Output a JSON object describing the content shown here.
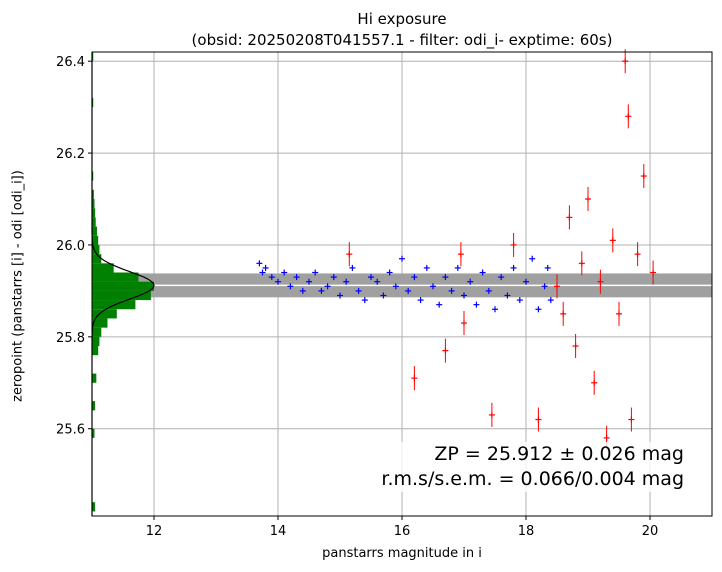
{
  "chart_data": {
    "type": "scatter",
    "title_line1": "Hi exposure",
    "title_line2": "(obsid: 20250208T041557.1 - filter: odi_i- exptime: 60s)",
    "xlabel": "panstarrs magnitude in i",
    "ylabel": "zeropoint (panstarrs [i] - odi [odi_i])",
    "xlim": [
      11.0,
      21.0
    ],
    "ylim": [
      25.41,
      26.42
    ],
    "x_ticks": [
      "12",
      "14",
      "16",
      "18",
      "20"
    ],
    "y_ticks": [
      "25.6",
      "25.8",
      "26.0",
      "26.2",
      "26.4"
    ],
    "grid": true,
    "zeropoint": 25.912,
    "zeropoint_err": 0.026,
    "annotation_line1": "ZP = 25.912 ± 0.026 mag",
    "annotation_line2": "r.m.s/s.e.m. = 0.066/0.004 mag",
    "histogram": {
      "color": "#008000",
      "bin_width": 0.02,
      "bins": [
        {
          "y": 25.42,
          "count": 0.05
        },
        {
          "y": 25.58,
          "count": 0.04
        },
        {
          "y": 25.64,
          "count": 0.05
        },
        {
          "y": 25.7,
          "count": 0.07
        },
        {
          "y": 25.76,
          "count": 0.1
        },
        {
          "y": 25.78,
          "count": 0.12
        },
        {
          "y": 25.8,
          "count": 0.15
        },
        {
          "y": 25.82,
          "count": 0.25
        },
        {
          "y": 25.84,
          "count": 0.4
        },
        {
          "y": 25.86,
          "count": 0.7
        },
        {
          "y": 25.88,
          "count": 0.95
        },
        {
          "y": 25.9,
          "count": 1.0
        },
        {
          "y": 25.92,
          "count": 0.75
        },
        {
          "y": 25.94,
          "count": 0.35
        },
        {
          "y": 25.96,
          "count": 0.15
        },
        {
          "y": 25.98,
          "count": 0.12
        },
        {
          "y": 26.0,
          "count": 0.1
        },
        {
          "y": 26.02,
          "count": 0.08
        },
        {
          "y": 26.04,
          "count": 0.06
        },
        {
          "y": 26.06,
          "count": 0.05
        },
        {
          "y": 26.08,
          "count": 0.04
        },
        {
          "y": 26.1,
          "count": 0.03
        },
        {
          "y": 26.14,
          "count": 0.02
        },
        {
          "y": 26.3,
          "count": 0.02
        },
        {
          "y": 26.4,
          "count": 0.02
        }
      ],
      "gaussian_sigma": 0.03
    },
    "series": [
      {
        "color": "#0000ff",
        "marker": "+",
        "points": [
          [
            13.7,
            25.96
          ],
          [
            13.75,
            25.94
          ],
          [
            13.8,
            25.95
          ],
          [
            13.9,
            25.93
          ],
          [
            14.0,
            25.92
          ],
          [
            14.1,
            25.94
          ],
          [
            14.2,
            25.91
          ],
          [
            14.3,
            25.93
          ],
          [
            14.4,
            25.9
          ],
          [
            14.5,
            25.92
          ],
          [
            14.6,
            25.94
          ],
          [
            14.7,
            25.9
          ],
          [
            14.8,
            25.91
          ],
          [
            14.9,
            25.93
          ],
          [
            15.0,
            25.89
          ],
          [
            15.1,
            25.92
          ],
          [
            15.2,
            25.95
          ],
          [
            15.3,
            25.9
          ],
          [
            15.4,
            25.88
          ],
          [
            15.5,
            25.93
          ],
          [
            15.6,
            25.92
          ],
          [
            15.7,
            25.89
          ],
          [
            15.8,
            25.94
          ],
          [
            15.9,
            25.91
          ],
          [
            16.0,
            25.97
          ],
          [
            16.1,
            25.9
          ],
          [
            16.2,
            25.93
          ],
          [
            16.3,
            25.88
          ],
          [
            16.4,
            25.95
          ],
          [
            16.5,
            25.91
          ],
          [
            16.6,
            25.87
          ],
          [
            16.7,
            25.93
          ],
          [
            16.8,
            25.9
          ],
          [
            16.9,
            25.95
          ],
          [
            17.0,
            25.89
          ],
          [
            17.1,
            25.92
          ],
          [
            17.2,
            25.87
          ],
          [
            17.3,
            25.94
          ],
          [
            17.4,
            25.9
          ],
          [
            17.5,
            25.86
          ],
          [
            17.6,
            25.93
          ],
          [
            17.7,
            25.89
          ],
          [
            17.8,
            25.95
          ],
          [
            17.9,
            25.88
          ],
          [
            18.0,
            25.92
          ],
          [
            18.1,
            25.97
          ],
          [
            18.2,
            25.86
          ],
          [
            18.3,
            25.91
          ],
          [
            18.35,
            25.95
          ],
          [
            18.4,
            25.88
          ]
        ]
      },
      {
        "color": "#ff0000",
        "marker": "+",
        "points": [
          [
            15.15,
            25.98
          ],
          [
            16.2,
            25.71
          ],
          [
            16.7,
            25.77
          ],
          [
            16.95,
            25.98
          ],
          [
            17.0,
            25.83
          ],
          [
            17.45,
            25.63
          ],
          [
            17.8,
            26.0
          ],
          [
            18.2,
            25.62
          ],
          [
            18.5,
            25.91
          ],
          [
            18.6,
            25.85
          ],
          [
            18.7,
            26.06
          ],
          [
            18.8,
            25.78
          ],
          [
            18.9,
            25.96
          ],
          [
            19.0,
            26.1
          ],
          [
            19.1,
            25.7
          ],
          [
            19.2,
            25.92
          ],
          [
            19.3,
            25.58
          ],
          [
            19.4,
            26.01
          ],
          [
            19.5,
            25.85
          ],
          [
            19.6,
            26.4
          ],
          [
            19.65,
            26.28
          ],
          [
            19.7,
            25.62
          ],
          [
            19.8,
            25.98
          ],
          [
            19.9,
            26.15
          ],
          [
            20.05,
            25.94
          ]
        ]
      }
    ]
  }
}
